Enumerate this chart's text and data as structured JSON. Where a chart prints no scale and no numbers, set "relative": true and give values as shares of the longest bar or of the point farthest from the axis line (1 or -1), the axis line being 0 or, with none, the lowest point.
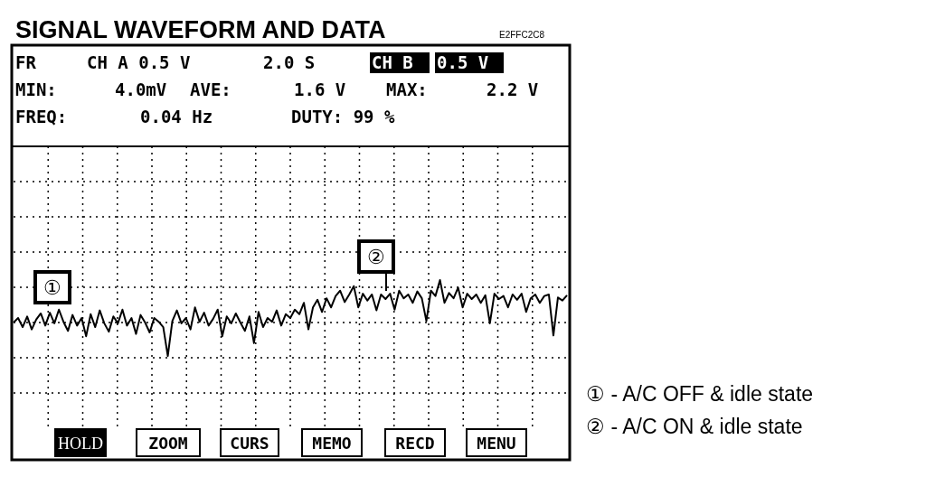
{
  "chart_data": {
    "type": "line",
    "title": "SIGNAL WAVEFORM AND DATA",
    "relative": true,
    "grid": true,
    "line_style": "solid",
    "annotations": [
      "E2FFC2C8",
      "FR",
      "CH A 0.5 V",
      "2.0 S",
      "CH B",
      "0.5 V",
      "MIN:",
      "4.0mV",
      "AVE:",
      "1.6 V",
      "MAX:",
      "2.2 V",
      "FREQ:",
      "0.04 Hz",
      "DUTY: 99 %",
      "①",
      "②",
      "HOLD",
      "ZOOM",
      "CURS",
      "MEMO",
      "RECD",
      "MENU",
      "① - A/C OFF & idle state",
      "② - A/C ON & idle state"
    ],
    "categories": [
      null,
      null,
      null,
      null,
      null,
      null,
      null,
      null,
      null,
      null,
      null,
      null,
      null,
      null,
      null,
      null,
      null,
      null,
      null,
      null,
      null,
      null,
      null,
      null,
      null,
      null,
      null,
      null,
      null,
      null,
      null,
      null,
      null,
      null,
      null,
      null,
      null,
      null,
      null,
      null,
      null,
      null,
      null,
      null,
      null,
      null,
      null,
      null,
      null,
      null,
      null,
      null,
      null,
      null,
      null,
      null,
      null,
      null,
      null,
      null,
      null,
      null,
      null,
      null,
      null,
      null,
      null,
      null,
      null,
      null,
      null,
      null,
      null,
      null,
      null,
      null,
      null,
      null,
      null,
      null,
      null,
      null,
      null,
      null,
      null,
      null,
      null,
      null,
      null,
      null,
      null,
      null,
      null,
      null,
      null,
      null,
      null,
      null,
      null,
      null,
      null,
      null,
      null,
      null,
      null,
      null,
      null,
      null,
      null,
      null,
      null,
      null,
      null,
      null,
      null,
      null,
      null,
      null,
      null,
      null,
      null,
      null,
      null
    ],
    "series": [
      {
        "color": "#000000",
        "values": [
          0.44,
          0.5,
          0.38,
          0.52,
          0.35,
          0.48,
          0.56,
          0.4,
          0.57,
          0.43,
          0.61,
          0.45,
          0.33,
          0.54,
          0.4,
          0.5,
          0.26,
          0.55,
          0.38,
          0.6,
          0.43,
          0.32,
          0.52,
          0.43,
          0.61,
          0.4,
          0.5,
          0.29,
          0.54,
          0.44,
          0.31,
          0.5,
          0.45,
          0.38,
          0,
          0.46,
          0.6,
          0.43,
          0.5,
          0.35,
          0.64,
          0.45,
          0.57,
          0.4,
          0.49,
          0.61,
          0.26,
          0.52,
          0.43,
          0.56,
          0.44,
          0.33,
          0.52,
          0.17,
          0.58,
          0.38,
          0.5,
          0.45,
          0.6,
          0.4,
          0.55,
          0.5,
          0.61,
          0.55,
          0.7,
          0.35,
          0.64,
          0.74,
          0.58,
          0.76,
          0.64,
          0.79,
          0.86,
          0.71,
          0.81,
          0.92,
          0.64,
          0.82,
          0.73,
          0.81,
          0.6,
          0.81,
          0.75,
          0.82,
          0.61,
          0.86,
          0.76,
          0.81,
          0.7,
          0.85,
          0.76,
          0.46,
          0.86,
          0.79,
          1,
          0.7,
          0.83,
          0.76,
          0.9,
          0.64,
          0.82,
          0.75,
          0.81,
          0.7,
          0.8,
          0.43,
          0.82,
          0.75,
          0.79,
          0.64,
          0.81,
          0.74,
          0.82,
          0.58,
          0.76,
          0.81,
          0.7,
          0.79,
          0.81,
          0.27,
          0.77,
          0.73,
          0.8
        ]
      }
    ]
  }
}
